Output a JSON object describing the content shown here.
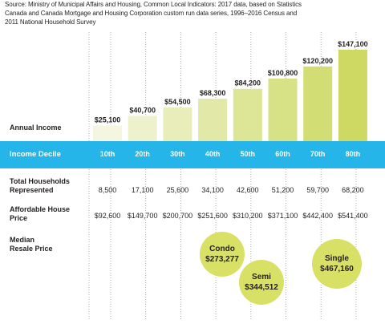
{
  "source": "Source: Ministry of Municipal Affairs and Housing, Common Local Indicators: 2017 data, based on Statistics Canada and Canada Mortgage and Housing Corporation custom run data series, 1996–2016 Census and 2011 National Household Survey",
  "labels": {
    "annual_income": "Annual Income",
    "income_decile": "Income Decile",
    "total_households": "Total Households Represented",
    "affordable_price": "Affordable House Price",
    "median_resale": "Median Resale Price"
  },
  "chart_data": {
    "type": "bar",
    "categories": [
      "10th",
      "20th",
      "30th",
      "40th",
      "50th",
      "60th",
      "70th",
      "80th"
    ],
    "values": [
      25100,
      40700,
      54500,
      68300,
      84200,
      100800,
      120200,
      147100
    ],
    "value_labels": [
      "$25,100",
      "$40,700",
      "$54,500",
      "$68,300",
      "$84,200",
      "$100,800",
      "$120,200",
      "$147,100"
    ],
    "ylabel": "Annual Income",
    "xlabel": "Income Decile",
    "ylim": [
      0,
      147100
    ],
    "grid": "vertical dotted",
    "colors": [
      "#f4f6df",
      "#eef2cc",
      "#e8edba",
      "#e2e9a8",
      "#dde596",
      "#d7e186",
      "#d2de74",
      "#cdd962"
    ],
    "total_households": [
      "8,500",
      "17,100",
      "25,600",
      "34,100",
      "42,600",
      "51,200",
      "59,700",
      "68,200"
    ],
    "affordable_house_price": [
      "$92,600",
      "$149,700",
      "$200,700",
      "$251,600",
      "$310,200",
      "$371,100",
      "$442,400",
      "$541,400"
    ]
  },
  "resale": [
    {
      "type": "Condo",
      "price": "$273,277"
    },
    {
      "type": "Semi",
      "price": "$344,512"
    },
    {
      "type": "Single",
      "price": "$467,160"
    }
  ],
  "colors": {
    "band": "#25b5e8",
    "bubble": "#d9e066"
  }
}
